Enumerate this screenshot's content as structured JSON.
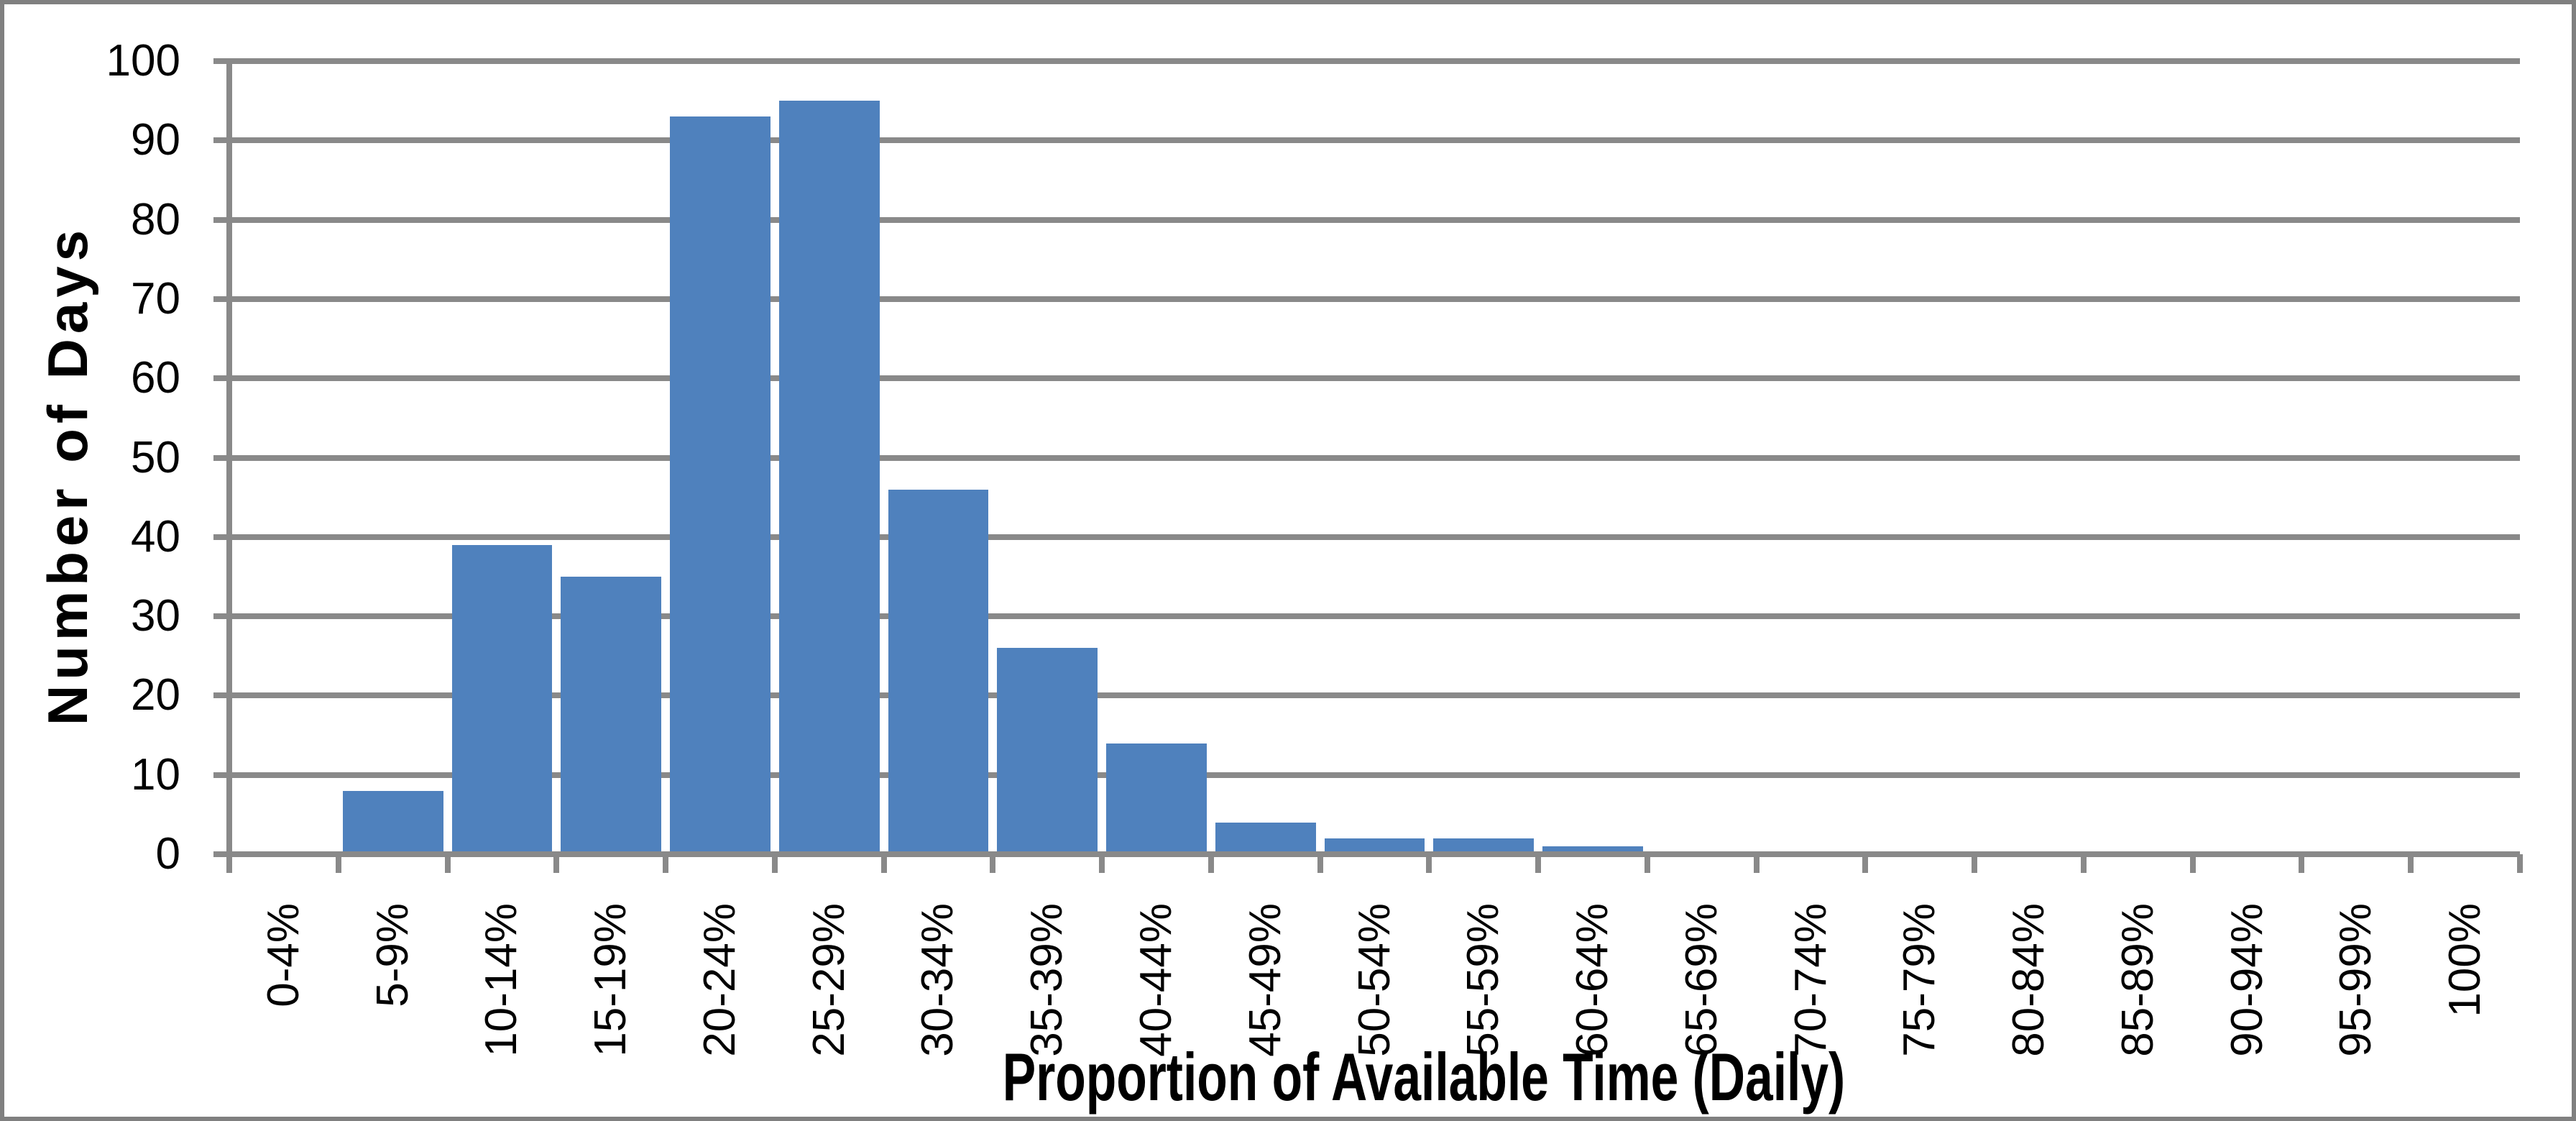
{
  "chart_data": {
    "type": "bar",
    "title": "",
    "categories": [
      "0-4%",
      "5-9%",
      "10-14%",
      "15-19%",
      "20-24%",
      "25-29%",
      "30-34%",
      "35-39%",
      "40-44%",
      "45-49%",
      "50-54%",
      "55-59%",
      "60-64%",
      "65-69%",
      "70-74%",
      "75-79%",
      "80-84%",
      "85-89%",
      "90-94%",
      "95-99%",
      "100%"
    ],
    "values": [
      0,
      8,
      39,
      35,
      93,
      95,
      46,
      26,
      14,
      4,
      2,
      2,
      1,
      0,
      0,
      0,
      0,
      0,
      0,
      0,
      0
    ],
    "xlabel": "Proportion of Available Time (Daily)",
    "ylabel": "Number of Days",
    "ylim": [
      0,
      100
    ],
    "yticks": [
      0,
      10,
      20,
      30,
      40,
      50,
      60,
      70,
      80,
      90,
      100
    ],
    "grid": "horizontal-major",
    "legend": "none",
    "bar_color": "#4F81BD",
    "axis_color": "#898989",
    "text_color": "#000000",
    "background_color": "#FFFFFF",
    "border_color": "#808080"
  }
}
